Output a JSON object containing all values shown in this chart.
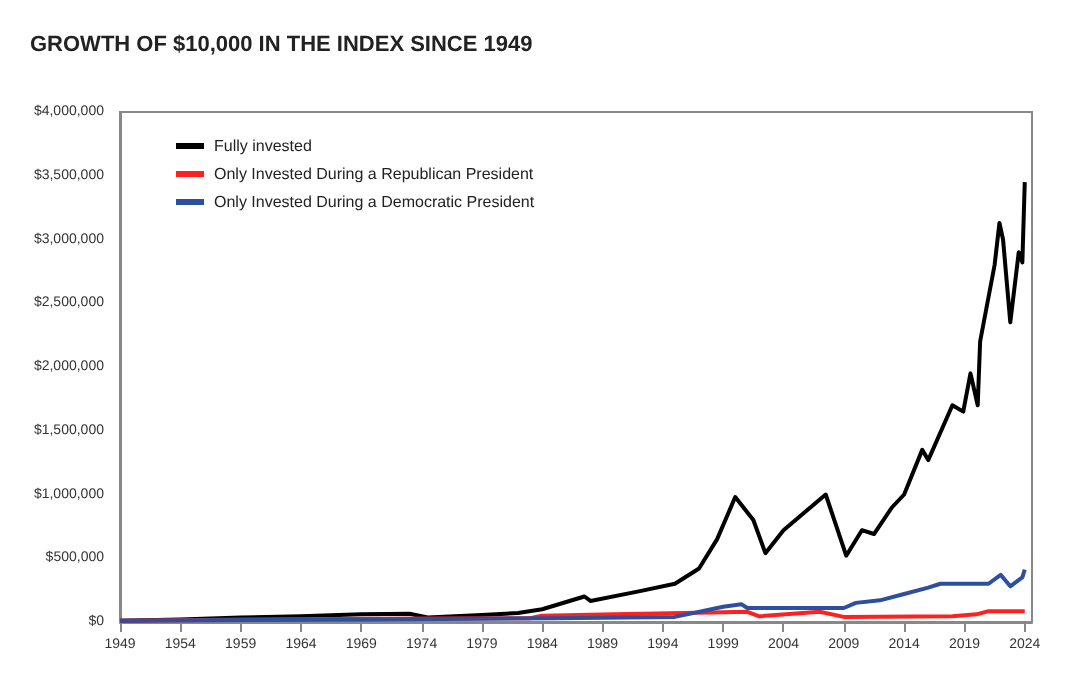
{
  "chart_data": {
    "type": "line",
    "title": "GROWTH OF $10,000 IN THE INDEX SINCE 1949",
    "xlim": [
      1949,
      2024.6
    ],
    "xticks": [
      1949,
      1954,
      1959,
      1964,
      1969,
      1974,
      1979,
      1984,
      1989,
      1994,
      1999,
      2004,
      2009,
      2014,
      2019,
      2024
    ],
    "ylim": [
      0,
      4000000
    ],
    "yticks": [
      {
        "value": 0,
        "label": "$0"
      },
      {
        "value": 500000,
        "label": "$500,000"
      },
      {
        "value": 1000000,
        "label": "$1,000,000"
      },
      {
        "value": 1500000,
        "label": "$1,500,000"
      },
      {
        "value": 2000000,
        "label": "$2,000,000"
      },
      {
        "value": 2500000,
        "label": "$2,500,000"
      },
      {
        "value": 3000000,
        "label": "$3,000,000"
      },
      {
        "value": 3500000,
        "label": "$3,500,000"
      },
      {
        "value": 4000000,
        "label": "$4,000,000"
      }
    ],
    "grid": false,
    "legend": "top left",
    "marker": "none",
    "line_style": "solid",
    "series": [
      {
        "name": "Fully invested",
        "color": "#000000",
        "x": [
          1949,
          1954,
          1959,
          1964,
          1969,
          1973,
          1974.5,
          1979,
          1982,
          1984,
          1987.5,
          1988,
          1992,
          1995,
          1997,
          1998.5,
          2000,
          2001.5,
          2002.5,
          2004,
          2007.5,
          2009.2,
          2010.5,
          2011.5,
          2013,
          2014,
          2015.5,
          2016,
          2018,
          2018.9,
          2019.5,
          2020.1,
          2020.3,
          2021.5,
          2021.9,
          2022.2,
          2022.8,
          2023.5,
          2023.8,
          2024
        ],
        "values": [
          10000,
          20000,
          35000,
          45000,
          60000,
          65000,
          35000,
          55000,
          70000,
          100000,
          200000,
          165000,
          240000,
          300000,
          420000,
          650000,
          980000,
          800000,
          540000,
          720000,
          1000000,
          520000,
          720000,
          690000,
          900000,
          1000000,
          1350000,
          1270000,
          1700000,
          1650000,
          1950000,
          1700000,
          2200000,
          2800000,
          3130000,
          3000000,
          2350000,
          2900000,
          2820000,
          3450000
        ]
      },
      {
        "name": "Only Invested During a Republican President",
        "color": "#ff2020",
        "x": [
          1949,
          1960,
          1970,
          1983,
          1984,
          1990,
          1998,
          2001,
          2002,
          2007,
          2009,
          2018,
          2020,
          2021,
          2024
        ],
        "values": [
          10000,
          20000,
          25000,
          30000,
          50000,
          60000,
          75000,
          80000,
          45000,
          80000,
          40000,
          45000,
          60000,
          85000,
          85000
        ]
      },
      {
        "name": "Only Invested During a Democratic President",
        "color": "#2e4fa0",
        "x": [
          1949,
          1960,
          1970,
          1985,
          1995,
          1999,
          2000.5,
          2001,
          2009,
          2010,
          2012,
          2014,
          2016,
          2017,
          2021,
          2022,
          2022.8,
          2023.8,
          2024
        ],
        "values": [
          10000,
          15000,
          20000,
          30000,
          40000,
          120000,
          140000,
          110000,
          110000,
          150000,
          170000,
          220000,
          270000,
          300000,
          300000,
          370000,
          280000,
          350000,
          410000
        ]
      }
    ]
  }
}
